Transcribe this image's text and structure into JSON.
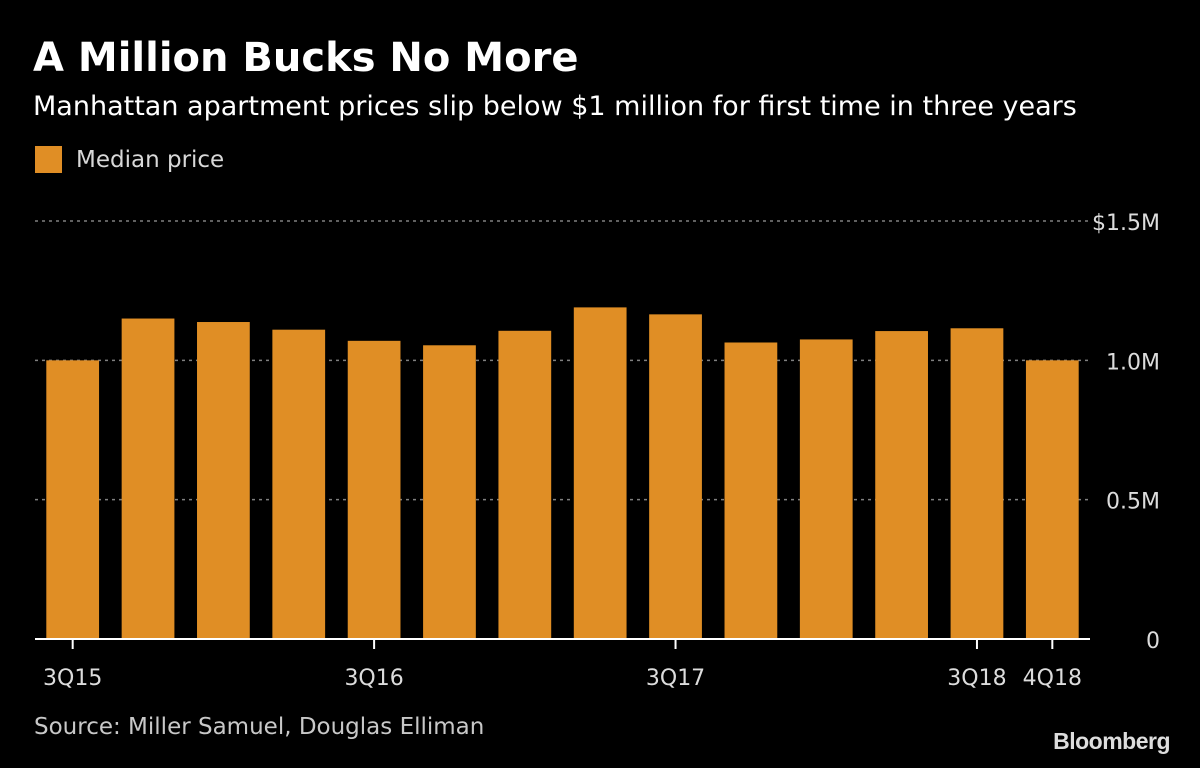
{
  "title": "A Million Bucks No More",
  "subtitle": "Manhattan apartment prices slip below $1 million for first time in three years",
  "legend": {
    "label": "Median price"
  },
  "source": "Source: Miller Samuel, Douglas Elliman",
  "brand": "Bloomberg",
  "colors": {
    "bar": "#E08E25",
    "background": "#000000",
    "grid": "#808080",
    "text": "#ffffff"
  },
  "chart_data": {
    "type": "bar",
    "categories": [
      "3Q15",
      "4Q15",
      "1Q16",
      "2Q16",
      "3Q16",
      "4Q16",
      "1Q17",
      "2Q17",
      "3Q17",
      "4Q17",
      "1Q18",
      "2Q18",
      "3Q18",
      "4Q18"
    ],
    "visible_x_labels": [
      "3Q15",
      "3Q16",
      "3Q17",
      "3Q18",
      "4Q18"
    ],
    "series": [
      {
        "name": "Median price",
        "values": [
          1000000,
          1150000,
          1137500,
          1110000,
          1070000,
          1054000,
          1106000,
          1190000,
          1165000,
          1064000,
          1075000,
          1105000,
          1115000,
          1000000
        ]
      }
    ],
    "ylim": [
      0,
      1500000
    ],
    "y_ticks": [
      {
        "value": 0,
        "label": "0"
      },
      {
        "value": 500000,
        "label": "0.5M"
      },
      {
        "value": 1000000,
        "label": "1.0M"
      },
      {
        "value": 1500000,
        "label": "$1.5M"
      }
    ],
    "grid": true,
    "legend_position": "top-left"
  }
}
